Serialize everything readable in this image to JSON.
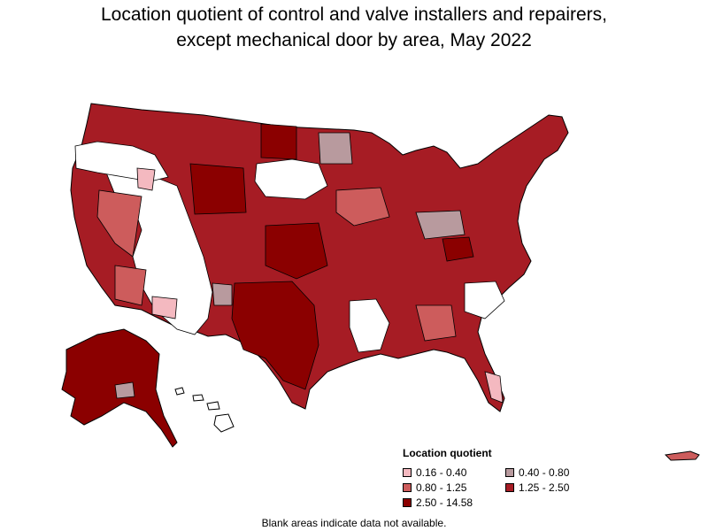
{
  "title_line1": "Location quotient of control and valve installers and repairers,",
  "title_line2": "except mechanical door by area, May 2022",
  "legend": {
    "title": "Location quotient",
    "items": [
      {
        "label": "0.16 - 0.40",
        "color": "#f4b9c0"
      },
      {
        "label": "0.40 - 0.80",
        "color": "#b89a9e"
      },
      {
        "label": "0.80 - 1.25",
        "color": "#cd5c5c"
      },
      {
        "label": "1.25 - 2.50",
        "color": "#a61c24"
      },
      {
        "label": "2.50 - 14.58",
        "color": "#8b0000"
      }
    ]
  },
  "note": "Blank areas indicate data not available.",
  "colors": {
    "outline": "#000000",
    "no_data": "#ffffff"
  }
}
